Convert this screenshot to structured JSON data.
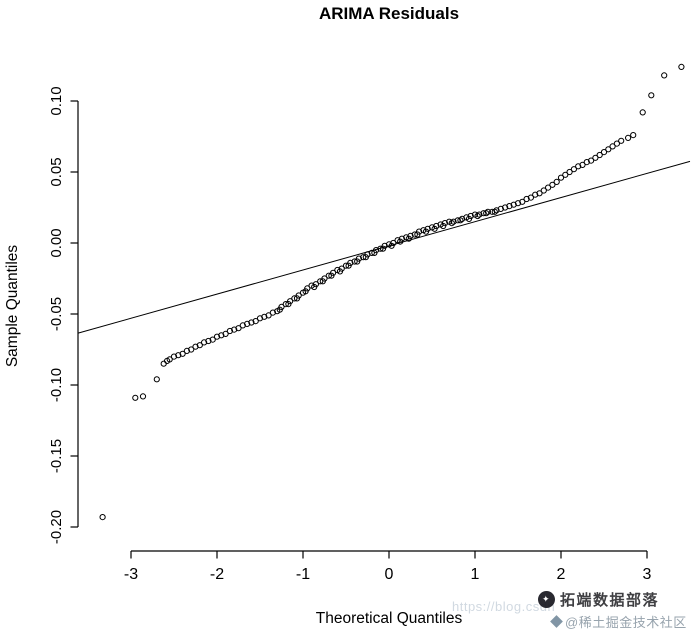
{
  "chart_data": {
    "type": "scatter",
    "title": "ARIMA Residuals",
    "xlabel": "Theoretical Quantiles",
    "ylabel": "Sample Quantiles",
    "xlim": [
      -3.62,
      3.55
    ],
    "ylim": [
      -0.217,
      0.129
    ],
    "grid": false,
    "legend": "none",
    "x_ticks": {
      "values": [
        -3,
        -2,
        -1,
        0,
        1,
        2,
        3
      ],
      "labels": [
        "-3",
        "-2",
        "-1",
        "0",
        "1",
        "2",
        "3"
      ]
    },
    "y_ticks": {
      "values": [
        0.1,
        0.05,
        0.0,
        -0.05,
        -0.1,
        -0.15,
        -0.2
      ],
      "labels": [
        "0.10",
        "0.05",
        "0.00",
        "-0.05",
        "-0.10",
        "-0.15",
        "-0.20"
      ]
    },
    "marker": {
      "shape": "open-circle",
      "color": "#000000"
    },
    "reference_line": {
      "slope": 0.017,
      "intercept": -0.002,
      "color": "#000000",
      "x_range": [
        -3.62,
        3.5
      ]
    },
    "points": [
      [
        -3.33,
        -0.193
      ],
      [
        -2.95,
        -0.109
      ],
      [
        -2.86,
        -0.108
      ],
      [
        -2.7,
        -0.096
      ],
      [
        -2.62,
        -0.085
      ],
      [
        -2.58,
        -0.083
      ],
      [
        -2.55,
        -0.082
      ],
      [
        -2.5,
        -0.08
      ],
      [
        -2.45,
        -0.079
      ],
      [
        -2.4,
        -0.078
      ],
      [
        -2.35,
        -0.076
      ],
      [
        -2.3,
        -0.075
      ],
      [
        -2.25,
        -0.073
      ],
      [
        -2.2,
        -0.072
      ],
      [
        -2.15,
        -0.07
      ],
      [
        -2.1,
        -0.069
      ],
      [
        -2.05,
        -0.068
      ],
      [
        -2.0,
        -0.066
      ],
      [
        -1.95,
        -0.065
      ],
      [
        -1.9,
        -0.064
      ],
      [
        -1.85,
        -0.062
      ],
      [
        -1.8,
        -0.061
      ],
      [
        -1.75,
        -0.06
      ],
      [
        -1.7,
        -0.058
      ],
      [
        -1.65,
        -0.057
      ],
      [
        -1.6,
        -0.056
      ],
      [
        -1.55,
        -0.055
      ],
      [
        -1.5,
        -0.053
      ],
      [
        -1.45,
        -0.052
      ],
      [
        -1.4,
        -0.051
      ],
      [
        -1.35,
        -0.049
      ],
      [
        -1.3,
        -0.048
      ],
      [
        -1.25,
        -0.045
      ],
      [
        -1.2,
        -0.043
      ],
      [
        -1.15,
        -0.041
      ],
      [
        -1.1,
        -0.039
      ],
      [
        -1.05,
        -0.037
      ],
      [
        -1.0,
        -0.035
      ],
      [
        -0.95,
        -0.032
      ],
      [
        -0.9,
        -0.03
      ],
      [
        -0.85,
        -0.029
      ],
      [
        -0.8,
        -0.027
      ],
      [
        -0.75,
        -0.025
      ],
      [
        -0.7,
        -0.023
      ],
      [
        -0.65,
        -0.021
      ],
      [
        -0.6,
        -0.019
      ],
      [
        -0.55,
        -0.018
      ],
      [
        -0.5,
        -0.016
      ],
      [
        -0.45,
        -0.014
      ],
      [
        -0.4,
        -0.013
      ],
      [
        -0.35,
        -0.011
      ],
      [
        -0.3,
        -0.01
      ],
      [
        -0.25,
        -0.008
      ],
      [
        -0.2,
        -0.007
      ],
      [
        -0.15,
        -0.005
      ],
      [
        -0.1,
        -0.004
      ],
      [
        -0.05,
        -0.002
      ],
      [
        0.0,
        -0.001
      ],
      [
        0.05,
        0.0
      ],
      [
        0.1,
        0.002
      ],
      [
        0.15,
        0.003
      ],
      [
        0.2,
        0.004
      ],
      [
        0.25,
        0.005
      ],
      [
        0.3,
        0.006
      ],
      [
        0.35,
        0.008
      ],
      [
        0.4,
        0.009
      ],
      [
        0.45,
        0.01
      ],
      [
        0.5,
        0.011
      ],
      [
        0.55,
        0.012
      ],
      [
        0.6,
        0.013
      ],
      [
        0.65,
        0.014
      ],
      [
        0.7,
        0.015
      ],
      [
        0.75,
        0.015
      ],
      [
        0.8,
        0.016
      ],
      [
        0.85,
        0.017
      ],
      [
        0.9,
        0.018
      ],
      [
        0.95,
        0.019
      ],
      [
        1.0,
        0.02
      ],
      [
        1.05,
        0.02
      ],
      [
        1.1,
        0.021
      ],
      [
        1.15,
        0.022
      ],
      [
        1.2,
        0.022
      ],
      [
        1.25,
        0.023
      ],
      [
        1.3,
        0.024
      ],
      [
        -1.27,
        -0.047
      ],
      [
        -1.17,
        -0.043
      ],
      [
        -1.07,
        -0.039
      ],
      [
        -0.97,
        -0.034
      ],
      [
        -0.87,
        -0.031
      ],
      [
        -0.77,
        -0.027
      ],
      [
        -0.67,
        -0.023
      ],
      [
        -0.57,
        -0.02
      ],
      [
        -0.47,
        -0.016
      ],
      [
        -0.37,
        -0.013
      ],
      [
        -0.27,
        -0.01
      ],
      [
        -0.17,
        -0.007
      ],
      [
        -0.07,
        -0.004
      ],
      [
        0.03,
        -0.002
      ],
      [
        0.13,
        0.001
      ],
      [
        0.23,
        0.003
      ],
      [
        0.33,
        0.006
      ],
      [
        0.43,
        0.008
      ],
      [
        0.53,
        0.01
      ],
      [
        0.63,
        0.012
      ],
      [
        0.73,
        0.014
      ],
      [
        0.83,
        0.016
      ],
      [
        0.93,
        0.017
      ],
      [
        1.03,
        0.019
      ],
      [
        1.13,
        0.021
      ],
      [
        1.23,
        0.022
      ],
      [
        1.35,
        0.025
      ],
      [
        1.4,
        0.026
      ],
      [
        1.45,
        0.027
      ],
      [
        1.5,
        0.028
      ],
      [
        1.55,
        0.029
      ],
      [
        1.6,
        0.031
      ],
      [
        1.65,
        0.032
      ],
      [
        1.7,
        0.034
      ],
      [
        1.75,
        0.035
      ],
      [
        1.8,
        0.037
      ],
      [
        1.85,
        0.039
      ],
      [
        1.9,
        0.041
      ],
      [
        1.95,
        0.043
      ],
      [
        2.0,
        0.046
      ],
      [
        2.05,
        0.048
      ],
      [
        2.1,
        0.05
      ],
      [
        2.15,
        0.052
      ],
      [
        2.2,
        0.054
      ],
      [
        2.25,
        0.055
      ],
      [
        2.3,
        0.057
      ],
      [
        2.35,
        0.058
      ],
      [
        2.4,
        0.06
      ],
      [
        2.45,
        0.062
      ],
      [
        2.5,
        0.064
      ],
      [
        2.55,
        0.066
      ],
      [
        2.6,
        0.068
      ],
      [
        2.65,
        0.07
      ],
      [
        2.7,
        0.072
      ],
      [
        2.78,
        0.074
      ],
      [
        2.84,
        0.076
      ],
      [
        2.95,
        0.092
      ],
      [
        3.05,
        0.104
      ],
      [
        3.2,
        0.118
      ],
      [
        3.4,
        0.124
      ]
    ]
  },
  "watermark": {
    "url": "https://blog.csdn",
    "line1": "拓端数据部落",
    "line2": "@稀土掘金技术社区"
  }
}
